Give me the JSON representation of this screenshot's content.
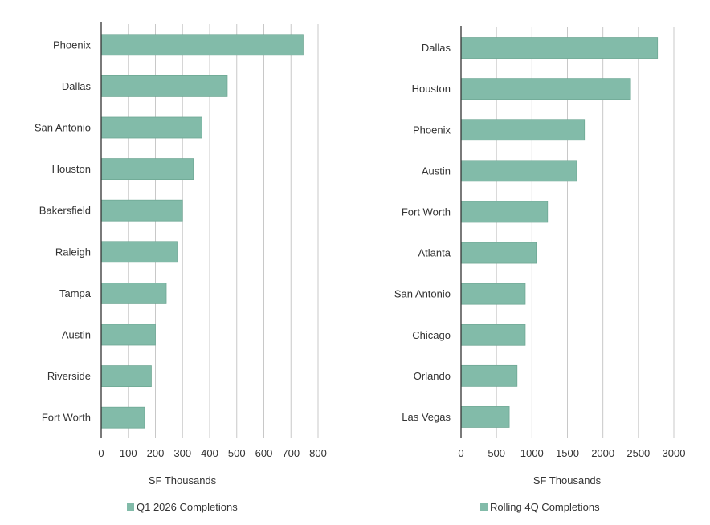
{
  "colors": {
    "bar": "#82bba9",
    "bar_stroke": "#6fa895",
    "grid": "#c8c8c8",
    "axis": "#333333"
  },
  "chart_data": [
    {
      "type": "bar",
      "orientation": "horizontal",
      "categories": [
        "Phoenix",
        "Dallas",
        "San Antonio",
        "Houston",
        "Bakersfield",
        "Raleigh",
        "Tampa",
        "Austin",
        "Riverside",
        "Fort Worth"
      ],
      "series": [
        {
          "name": "Q1 2026 Completions",
          "values": [
            745,
            465,
            372,
            340,
            300,
            280,
            240,
            200,
            185,
            160
          ]
        }
      ],
      "xticks": [
        "0",
        "100",
        "200",
        "300",
        "400",
        "500",
        "600",
        "700",
        "800"
      ],
      "xlim": [
        0,
        800
      ],
      "xlabel": "SF Thousands",
      "grid": true,
      "legend": "bottom"
    },
    {
      "type": "bar",
      "orientation": "horizontal",
      "categories": [
        "Dallas",
        "Houston",
        "Phoenix",
        "Austin",
        "Fort Worth",
        "Atlanta",
        "San Antonio",
        "Chicago",
        "Orlando",
        "Las Vegas"
      ],
      "series": [
        {
          "name": "Rolling 4Q Completions",
          "values": [
            2770,
            2390,
            1740,
            1630,
            1220,
            1060,
            905,
            905,
            790,
            680
          ]
        }
      ],
      "xticks": [
        "0",
        "500",
        "1000",
        "1500",
        "2000",
        "2500",
        "3000"
      ],
      "xlim": [
        0,
        3000
      ],
      "xlabel": "SF Thousands",
      "grid": true,
      "legend": "bottom"
    }
  ]
}
